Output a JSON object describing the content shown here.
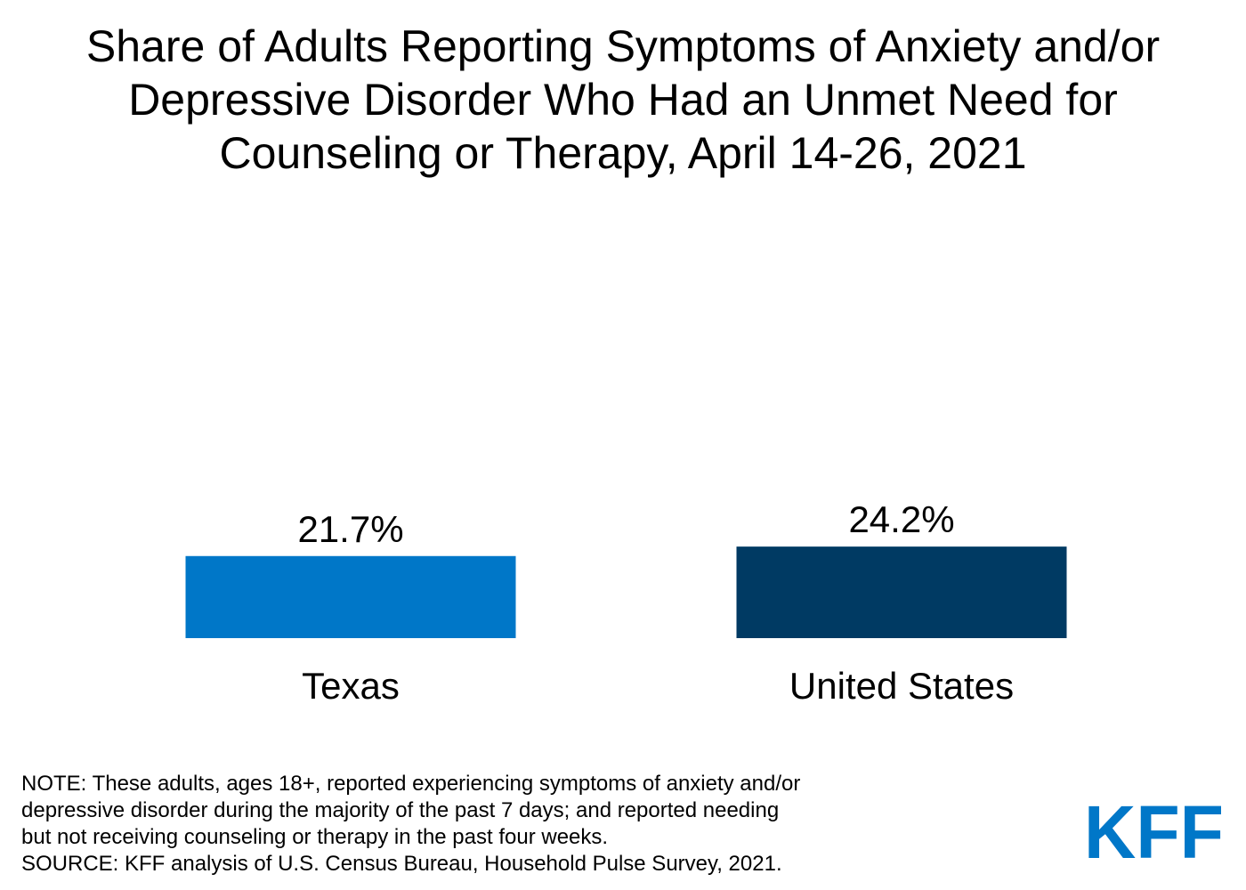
{
  "title_lines": [
    "Share of Adults Reporting Symptoms of Anxiety and/or",
    "Depressive Disorder Who Had an Unmet Need for",
    "Counseling or Therapy, April 14-26, 2021"
  ],
  "chart_data": {
    "type": "bar",
    "title": "Share of Adults Reporting Symptoms of Anxiety and/or Depressive Disorder Who Had an Unmet Need for Counseling or Therapy, April 14-26, 2021",
    "categories": [
      "Texas",
      "United States"
    ],
    "values": [
      21.7,
      24.2
    ],
    "value_labels": [
      "21.7%",
      "24.2%"
    ],
    "colors": [
      "#0077c8",
      "#003a63"
    ],
    "unit": "%",
    "xlabel": "",
    "ylabel": "",
    "ylim": [
      0,
      100
    ],
    "grid": false,
    "axes_visible": false
  },
  "note_lines": [
    "NOTE: These adults, ages 18+, reported experiencing symptoms of anxiety and/or",
    "depressive disorder during the majority of the past 7 days; and reported needing",
    "but not receiving counseling or therapy in the past four weeks.",
    "SOURCE: KFF analysis of U.S. Census Bureau, Household Pulse Survey, 2021."
  ],
  "logo": {
    "text": "KFF",
    "color": "#0077c8"
  }
}
